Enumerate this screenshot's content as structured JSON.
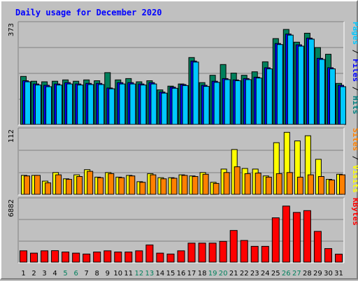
{
  "chart_data": {
    "type": "bar",
    "title": "Daily usage for December 2020",
    "categories": [
      "1",
      "2",
      "3",
      "4",
      "5",
      "6",
      "7",
      "8",
      "9",
      "10",
      "11",
      "12",
      "13",
      "14",
      "15",
      "16",
      "17",
      "18",
      "19",
      "20",
      "21",
      "22",
      "23",
      "24",
      "25",
      "26",
      "27",
      "28",
      "29",
      "30",
      "31"
    ],
    "weekend_days": [
      "5",
      "6",
      "12",
      "13",
      "19",
      "20",
      "26",
      "27"
    ],
    "panels": [
      {
        "name": "hits-files-pages",
        "max_label": "373",
        "ymax": 373,
        "legend": [
          {
            "text": "Pages",
            "color": "#00c8ff"
          },
          {
            "text": " / ",
            "color": "#000000"
          },
          {
            "text": "Files",
            "color": "#0000ff"
          },
          {
            "text": " / ",
            "color": "#000000"
          },
          {
            "text": "Hits",
            "color": "#008080"
          }
        ],
        "series": [
          {
            "name": "Hits",
            "color": "#00805c",
            "values": [
              178,
              160,
              158,
              160,
              165,
              160,
              165,
              162,
              192,
              165,
              170,
              158,
              162,
              128,
              142,
              150,
              248,
              155,
              182,
              222,
              190,
              182,
              195,
              232,
              318,
              352,
              305,
              338,
              285,
              260,
              152
            ]
          },
          {
            "name": "Files",
            "color": "#0000ff",
            "values": [
              162,
              150,
              145,
              150,
              155,
              150,
              152,
              152,
              135,
              155,
              155,
              150,
              155,
              120,
              138,
              148,
              235,
              145,
              160,
              170,
              165,
              170,
              175,
              210,
              300,
              335,
              295,
              320,
              245,
              210,
              145
            ]
          },
          {
            "name": "Pages",
            "color": "#00c8ff",
            "values": [
              158,
              146,
              140,
              146,
              150,
              146,
              148,
              148,
              132,
              150,
              150,
              146,
              150,
              116,
              134,
              144,
              231,
              141,
              156,
              166,
              162,
              166,
              172,
              206,
              296,
              331,
              290,
              316,
              241,
              206,
              140
            ]
          }
        ]
      },
      {
        "name": "visits-sites",
        "max_label": "112",
        "ymax": 112,
        "legend": [
          {
            "text": "Sites",
            "color": "#ff8000"
          },
          {
            "text": " / ",
            "color": "#000000"
          },
          {
            "text": "Visits",
            "color": "#ffff00"
          }
        ],
        "series": [
          {
            "name": "Visits",
            "color": "#ffff00",
            "values": [
              33,
              33,
              23,
              38,
              27,
              34,
              43,
              30,
              38,
              30,
              33,
              22,
              36,
              29,
              29,
              34,
              32,
              38,
              21,
              44,
              78,
              45,
              44,
              32,
              90,
              108,
              93,
              102,
              61,
              26,
              35
            ]
          },
          {
            "name": "Sites",
            "color": "#ff8000",
            "values": [
              32,
              33,
              20,
              34,
              26,
              31,
              40,
              29,
              36,
              29,
              32,
              21,
              34,
              27,
              28,
              33,
              31,
              35,
              19,
              38,
              48,
              36,
              37,
              30,
              36,
              38,
              30,
              34,
              31,
              25,
              34
            ]
          }
        ]
      },
      {
        "name": "kbytes",
        "max_label": "6882",
        "ymax": 6882,
        "legend": [
          {
            "text": "KBytes",
            "color": "#ff0000"
          }
        ],
        "series": [
          {
            "name": "KBytes",
            "color": "#ff0000",
            "values": [
              1250,
              1000,
              1250,
              1270,
              1120,
              1000,
              900,
              1120,
              1250,
              1120,
              1120,
              1250,
              1900,
              1000,
              900,
              1250,
              2100,
              2100,
              2100,
              2300,
              3500,
              2400,
              1750,
              1750,
              4900,
              6200,
              5500,
              5700,
              3400,
              1500,
              880
            ]
          }
        ]
      }
    ]
  }
}
